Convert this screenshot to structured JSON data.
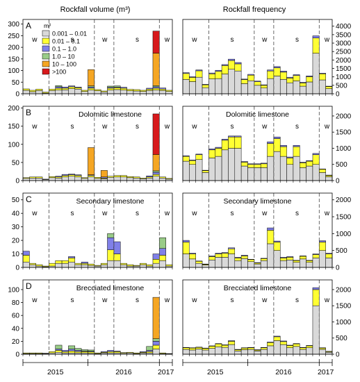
{
  "figure": {
    "col_titles": [
      "Rockfall volume (m³)",
      "Rockfall frequency"
    ],
    "year_labels": [
      "2015",
      "2016",
      "2017"
    ],
    "legend": {
      "title": "m³",
      "entries": [
        {
          "label": "0.001 – 0.01",
          "color": "#d9d9d9"
        },
        {
          "label": "0.01 – 0.1",
          "color": "#ffff33"
        },
        {
          "label": "0.1 – 1.0",
          "color": "#8080e8"
        },
        {
          "label": "1.0 – 10",
          "color": "#99cc88"
        },
        {
          "label": "10 – 100",
          "color": "#f5a623"
        },
        {
          "label": ">100",
          "color": "#d7191c"
        }
      ]
    }
  },
  "chart_data": [
    {
      "type": "bar",
      "stacked": true,
      "panel": "A",
      "subtitle": "",
      "ylim": [
        0,
        320
      ],
      "yticks": [
        0,
        50,
        100,
        150,
        200,
        250,
        300
      ],
      "seasons": [
        "w",
        "s",
        "w",
        "s",
        "w"
      ],
      "bins": [
        [
          15,
          6,
          0,
          0,
          0,
          0
        ],
        [
          9,
          6,
          0,
          0,
          0,
          0
        ],
        [
          14,
          6,
          0,
          0,
          0,
          0
        ],
        [
          3,
          4,
          0,
          0,
          0,
          0
        ],
        [
          14,
          6,
          0,
          0,
          0,
          0
        ],
        [
          16,
          8,
          6,
          5,
          0,
          0
        ],
        [
          17,
          7,
          5,
          0,
          0,
          0
        ],
        [
          22,
          8,
          4,
          0,
          0,
          0
        ],
        [
          20,
          6,
          3,
          0,
          0,
          0
        ],
        [
          10,
          5,
          0,
          0,
          0,
          0
        ],
        [
          16,
          8,
          5,
          5,
          70,
          0
        ],
        [
          13,
          5,
          0,
          0,
          0,
          0
        ],
        [
          8,
          4,
          0,
          0,
          0,
          0
        ],
        [
          16,
          8,
          4,
          5,
          0,
          0
        ],
        [
          18,
          8,
          3,
          5,
          0,
          0
        ],
        [
          16,
          8,
          4,
          0,
          0,
          0
        ],
        [
          13,
          6,
          0,
          0,
          0,
          0
        ],
        [
          12,
          6,
          0,
          0,
          0,
          0
        ],
        [
          10,
          5,
          0,
          0,
          0,
          0
        ],
        [
          14,
          6,
          4,
          0,
          0,
          0
        ],
        [
          16,
          8,
          6,
          5,
          140,
          95
        ],
        [
          14,
          6,
          5,
          0,
          0,
          0
        ],
        [
          10,
          5,
          0,
          0,
          0,
          0
        ]
      ]
    },
    {
      "type": "bar",
      "stacked": true,
      "panel": "A",
      "subtitle": "",
      "ylim": [
        0,
        4400
      ],
      "yticks": [
        0,
        500,
        1000,
        1500,
        2000,
        2500,
        3000,
        3500,
        4000
      ],
      "seasons": [
        "w",
        "s",
        "w",
        "s",
        "w"
      ],
      "bins": [
        [
          850,
          350,
          50
        ],
        [
          720,
          250,
          40
        ],
        [
          980,
          380,
          50
        ],
        [
          360,
          170,
          30
        ],
        [
          880,
          300,
          50
        ],
        [
          900,
          430,
          60
        ],
        [
          1170,
          500,
          60
        ],
        [
          1450,
          520,
          80
        ],
        [
          1350,
          420,
          80
        ],
        [
          600,
          240,
          30
        ],
        [
          770,
          330,
          50
        ],
        [
          500,
          210,
          40
        ],
        [
          340,
          160,
          30
        ],
        [
          900,
          450,
          60
        ],
        [
          1050,
          490,
          70
        ],
        [
          850,
          430,
          60
        ],
        [
          650,
          280,
          50
        ],
        [
          760,
          320,
          50
        ],
        [
          450,
          190,
          40
        ],
        [
          700,
          310,
          50
        ],
        [
          2400,
          900,
          130
        ],
        [
          820,
          360,
          40
        ],
        [
          300,
          130,
          20
        ]
      ]
    },
    {
      "type": "bar",
      "stacked": true,
      "panel": "B",
      "subtitle": "Dolomitic limestone",
      "ylim": [
        0,
        205
      ],
      "yticks": [
        0,
        50,
        100,
        150,
        200
      ],
      "seasons": [
        "w",
        "s",
        "w",
        "s",
        "w"
      ],
      "bins": [
        [
          6,
          2,
          0,
          0,
          0,
          0
        ],
        [
          7,
          3,
          0,
          0,
          0,
          0
        ],
        [
          7,
          3,
          0,
          0,
          0,
          0
        ],
        [
          3,
          1,
          0,
          0,
          0,
          0
        ],
        [
          8,
          3,
          0,
          0,
          0,
          0
        ],
        [
          7,
          3,
          2,
          0,
          0,
          0
        ],
        [
          10,
          4,
          3,
          0,
          0,
          0
        ],
        [
          12,
          4,
          2,
          0,
          0,
          0
        ],
        [
          10,
          4,
          2,
          0,
          0,
          0
        ],
        [
          6,
          2,
          0,
          0,
          0,
          0
        ],
        [
          10,
          4,
          2,
          0,
          75,
          0
        ],
        [
          6,
          3,
          0,
          0,
          0,
          0
        ],
        [
          5,
          2,
          3,
          0,
          18,
          0
        ],
        [
          9,
          3,
          0,
          0,
          0,
          0
        ],
        [
          10,
          4,
          0,
          0,
          0,
          0
        ],
        [
          10,
          4,
          0,
          0,
          0,
          0
        ],
        [
          8,
          3,
          0,
          0,
          0,
          0
        ],
        [
          7,
          3,
          0,
          0,
          0,
          0
        ],
        [
          5,
          2,
          0,
          0,
          0,
          0
        ],
        [
          7,
          3,
          3,
          0,
          0,
          0
        ],
        [
          12,
          5,
          6,
          4,
          45,
          112
        ],
        [
          7,
          3,
          0,
          0,
          0,
          0
        ],
        [
          4,
          2,
          0,
          0,
          0,
          0
        ]
      ]
    },
    {
      "type": "bar",
      "stacked": true,
      "panel": "B",
      "subtitle": "Dolomitic limestone",
      "ylim": [
        0,
        2300
      ],
      "yticks": [
        0,
        500,
        1000,
        1500,
        2000
      ],
      "seasons": [
        "w",
        "s",
        "w",
        "s",
        "w"
      ],
      "bins": [
        [
          600,
          150,
          20
        ],
        [
          500,
          120,
          20
        ],
        [
          650,
          150,
          20
        ],
        [
          250,
          60,
          10
        ],
        [
          700,
          250,
          30
        ],
        [
          750,
          250,
          30
        ],
        [
          950,
          300,
          30
        ],
        [
          1000,
          350,
          30
        ],
        [
          1000,
          350,
          30
        ],
        [
          450,
          120,
          20
        ],
        [
          400,
          100,
          20
        ],
        [
          400,
          100,
          20
        ],
        [
          400,
          120,
          20
        ],
        [
          750,
          400,
          50
        ],
        [
          900,
          400,
          50
        ],
        [
          750,
          300,
          40
        ],
        [
          500,
          200,
          30
        ],
        [
          750,
          300,
          40
        ],
        [
          400,
          150,
          20
        ],
        [
          450,
          150,
          20
        ],
        [
          500,
          300,
          40
        ],
        [
          250,
          100,
          10
        ],
        [
          120,
          40,
          10
        ]
      ]
    },
    {
      "type": "bar",
      "stacked": true,
      "panel": "C",
      "subtitle": "Secondary limestone",
      "ylim": [
        0,
        55
      ],
      "yticks": [
        0,
        10,
        20,
        30,
        40,
        50
      ],
      "seasons": [
        "w",
        "s",
        "w",
        "s",
        "w"
      ],
      "bins": [
        [
          4,
          5,
          3,
          0,
          0,
          0
        ],
        [
          2,
          1,
          0,
          0,
          0,
          0
        ],
        [
          1,
          1,
          0,
          0,
          0,
          0
        ],
        [
          0.5,
          0.5,
          0,
          0,
          0,
          0
        ],
        [
          1,
          2,
          0,
          0,
          0,
          0
        ],
        [
          3,
          2,
          0,
          0,
          0,
          0
        ],
        [
          3,
          2,
          0,
          0,
          0,
          0
        ],
        [
          4,
          3,
          1,
          0,
          0,
          0
        ],
        [
          2,
          1,
          0,
          0,
          0,
          0
        ],
        [
          2,
          1,
          1,
          0,
          0,
          0
        ],
        [
          1.5,
          1,
          0,
          0,
          0,
          0
        ],
        [
          1,
          0.5,
          0,
          0,
          0,
          0
        ],
        [
          2,
          1,
          0,
          0,
          0,
          0
        ],
        [
          5,
          8,
          9,
          3,
          0,
          0
        ],
        [
          5,
          5,
          9,
          0,
          0,
          0
        ],
        [
          2,
          1,
          0,
          0,
          0,
          0
        ],
        [
          1,
          1,
          0,
          0,
          0,
          0
        ],
        [
          1,
          0.5,
          0,
          0,
          0,
          0
        ],
        [
          2,
          1,
          0,
          0,
          0,
          0
        ],
        [
          1,
          1,
          0,
          0,
          0,
          0
        ],
        [
          3,
          3,
          4,
          0,
          0,
          0
        ],
        [
          5,
          4,
          5,
          8,
          0,
          0
        ],
        [
          1,
          1,
          0,
          0,
          0,
          0
        ]
      ]
    },
    {
      "type": "bar",
      "stacked": true,
      "panel": "C",
      "subtitle": "Secondary limestone",
      "ylim": [
        0,
        2200
      ],
      "yticks": [
        0,
        500,
        1000,
        1500,
        2000
      ],
      "seasons": [
        "w",
        "s",
        "w",
        "s",
        "w"
      ],
      "bins": [
        [
          400,
          350,
          50
        ],
        [
          250,
          150,
          20
        ],
        [
          120,
          60,
          10
        ],
        [
          70,
          20,
          10
        ],
        [
          220,
          100,
          20
        ],
        [
          300,
          100,
          20
        ],
        [
          300,
          120,
          20
        ],
        [
          400,
          150,
          30
        ],
        [
          200,
          80,
          20
        ],
        [
          260,
          80,
          20
        ],
        [
          170,
          60,
          10
        ],
        [
          100,
          30,
          10
        ],
        [
          200,
          60,
          10
        ],
        [
          700,
          400,
          70
        ],
        [
          500,
          250,
          30
        ],
        [
          200,
          80,
          20
        ],
        [
          220,
          80,
          20
        ],
        [
          150,
          50,
          10
        ],
        [
          250,
          80,
          10
        ],
        [
          150,
          50,
          10
        ],
        [
          280,
          100,
          20
        ],
        [
          500,
          250,
          40
        ],
        [
          280,
          120,
          20
        ]
      ]
    },
    {
      "type": "bar",
      "stacked": true,
      "panel": "D",
      "subtitle": "Brecciated limestone",
      "ylim": [
        0,
        115
      ],
      "yticks": [
        0,
        20,
        40,
        60,
        80,
        100
      ],
      "seasons": [
        "w",
        "s",
        "w",
        "s",
        "w"
      ],
      "bins": [
        [
          1,
          1,
          0,
          0,
          0,
          0
        ],
        [
          1,
          1,
          0,
          0,
          0,
          0
        ],
        [
          1,
          1,
          0,
          0,
          0,
          0
        ],
        [
          1,
          0.5,
          0,
          0,
          0,
          0
        ],
        [
          2,
          2,
          0,
          0,
          0,
          0
        ],
        [
          3,
          3,
          2,
          6,
          0,
          0
        ],
        [
          2,
          2,
          2,
          0,
          0,
          0
        ],
        [
          2,
          3,
          3,
          5,
          0,
          0
        ],
        [
          2,
          2,
          2,
          3,
          0,
          0
        ],
        [
          2,
          2,
          1,
          2,
          0,
          0
        ],
        [
          1.5,
          2,
          1,
          2,
          0,
          0
        ],
        [
          1,
          1,
          0,
          0,
          0,
          0
        ],
        [
          2,
          1,
          1,
          0,
          0,
          0
        ],
        [
          2,
          2,
          2,
          0,
          0,
          0
        ],
        [
          2,
          2,
          1,
          0,
          0,
          0
        ],
        [
          1.5,
          1,
          0,
          0,
          0,
          0
        ],
        [
          2,
          1,
          0,
          0,
          0,
          0
        ],
        [
          1,
          1,
          0,
          0,
          0,
          0
        ],
        [
          2,
          1,
          1,
          0,
          0,
          0
        ],
        [
          2,
          2,
          2,
          6,
          0,
          0
        ],
        [
          8,
          6,
          6,
          4,
          64,
          0
        ],
        [
          1,
          1,
          0,
          0,
          0,
          0
        ],
        [
          0.5,
          0.5,
          0,
          0,
          0,
          0
        ]
      ]
    },
    {
      "type": "bar",
      "stacked": true,
      "panel": "D",
      "subtitle": "Brecciated limestone",
      "ylim": [
        0,
        2300
      ],
      "yticks": [
        0,
        500,
        1000,
        1500,
        2000
      ],
      "seasons": [
        "w",
        "s",
        "w",
        "s",
        "w"
      ],
      "bins": [
        [
          150,
          50,
          10
        ],
        [
          130,
          60,
          10
        ],
        [
          160,
          50,
          10
        ],
        [
          130,
          50,
          10
        ],
        [
          180,
          70,
          10
        ],
        [
          230,
          90,
          10
        ],
        [
          210,
          70,
          10
        ],
        [
          300,
          100,
          20
        ],
        [
          100,
          40,
          10
        ],
        [
          140,
          50,
          10
        ],
        [
          150,
          50,
          10
        ],
        [
          100,
          30,
          10
        ],
        [
          150,
          50,
          10
        ],
        [
          260,
          100,
          20
        ],
        [
          420,
          120,
          20
        ],
        [
          300,
          90,
          20
        ],
        [
          200,
          70,
          10
        ],
        [
          240,
          80,
          10
        ],
        [
          150,
          50,
          10
        ],
        [
          200,
          60,
          10
        ],
        [
          1500,
          500,
          60
        ],
        [
          150,
          40,
          10
        ],
        [
          60,
          20,
          10
        ]
      ]
    }
  ]
}
